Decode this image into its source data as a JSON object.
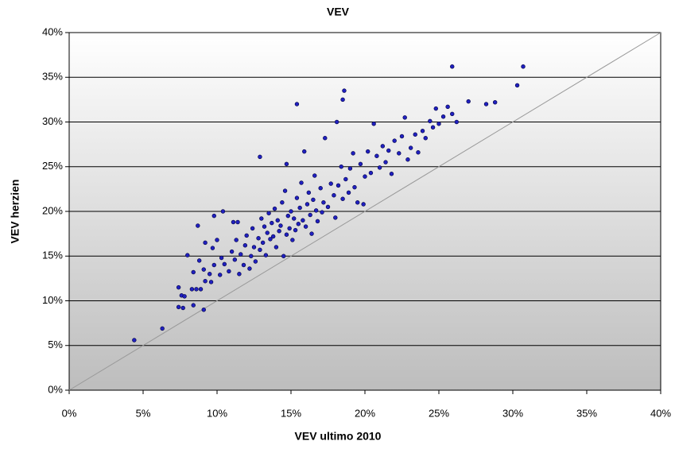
{
  "chart_data": {
    "type": "scatter",
    "title": "VEV",
    "x_label": "VEV ultimo 2010",
    "y_label": "VEV herzien",
    "xlim": [
      0,
      40
    ],
    "ylim": [
      0,
      40
    ],
    "xticks": [
      {
        "value": 0,
        "label": "0%"
      },
      {
        "value": 5,
        "label": "5%"
      },
      {
        "value": 10,
        "label": "10%"
      },
      {
        "value": 15,
        "label": "15%"
      },
      {
        "value": 20,
        "label": "20%"
      },
      {
        "value": 25,
        "label": "25%"
      },
      {
        "value": 30,
        "label": "30%"
      },
      {
        "value": 35,
        "label": "35%"
      },
      {
        "value": 40,
        "label": "40%"
      }
    ],
    "yticks": [
      {
        "value": 0,
        "label": "0%"
      },
      {
        "value": 5,
        "label": "5%"
      },
      {
        "value": 10,
        "label": "10%"
      },
      {
        "value": 15,
        "label": "15%"
      },
      {
        "value": 20,
        "label": "20%"
      },
      {
        "value": 25,
        "label": "25%"
      },
      {
        "value": 30,
        "label": "30%"
      },
      {
        "value": 35,
        "label": "35%"
      },
      {
        "value": 40,
        "label": "40%"
      }
    ],
    "grid": true,
    "identity_line": true,
    "color": "#2020c0",
    "series": [
      {
        "color": "#2020c0",
        "x": [
          4.4,
          6.3,
          7.4,
          7.4,
          7.7,
          7.6,
          7.8,
          8.0,
          8.7,
          8.3,
          8.4,
          8.6,
          9.1,
          8.9,
          8.4,
          8.8,
          9.1,
          9.2,
          9.2,
          9.6,
          9.7,
          9.8,
          10.4,
          10.3,
          11.1,
          9.8,
          10.2,
          9.5,
          10.0,
          11.4,
          10.5,
          10.8,
          11.0,
          11.2,
          11.3,
          11.5,
          11.6,
          11.8,
          11.9,
          12.0,
          12.2,
          12.3,
          12.4,
          12.5,
          12.6,
          12.8,
          12.9,
          13.0,
          13.1,
          13.2,
          13.3,
          13.4,
          13.5,
          13.6,
          13.7,
          13.8,
          13.9,
          14.0,
          14.1,
          14.2,
          14.3,
          14.4,
          14.5,
          14.6,
          14.7,
          14.8,
          14.9,
          15.0,
          15.1,
          15.2,
          15.3,
          15.4,
          15.5,
          15.6,
          15.7,
          15.8,
          15.9,
          16.0,
          16.1,
          16.2,
          16.3,
          16.4,
          16.5,
          16.6,
          16.7,
          16.8,
          17.0,
          17.1,
          17.2,
          17.3,
          17.5,
          17.7,
          17.9,
          18.0,
          18.1,
          18.2,
          18.4,
          18.5,
          18.6,
          18.7,
          18.9,
          19.0,
          19.2,
          19.3,
          19.5,
          19.7,
          19.9,
          20.0,
          20.2,
          20.4,
          20.6,
          20.8,
          21.0,
          21.2,
          21.4,
          21.6,
          21.8,
          22.0,
          22.3,
          22.5,
          22.7,
          22.9,
          23.1,
          23.4,
          23.6,
          23.9,
          24.1,
          24.4,
          24.6,
          24.8,
          25.0,
          25.3,
          25.6,
          25.9,
          26.2,
          27.0,
          28.2,
          28.8,
          30.3,
          30.7,
          25.9,
          15.4,
          18.5,
          12.9,
          14.7
        ],
        "values": [
          5.6,
          6.9,
          11.5,
          9.3,
          9.2,
          10.6,
          10.5,
          15.1,
          18.4,
          11.3,
          9.5,
          11.3,
          9.0,
          11.3,
          13.2,
          14.5,
          13.5,
          16.5,
          12.2,
          12.1,
          15.9,
          19.5,
          20.0,
          14.8,
          18.8,
          14.0,
          12.9,
          13.0,
          16.8,
          18.8,
          14.1,
          13.3,
          15.5,
          14.6,
          16.8,
          13.0,
          15.2,
          14.0,
          16.2,
          17.3,
          13.6,
          15.0,
          18.1,
          16.0,
          14.4,
          17.0,
          15.7,
          19.2,
          16.5,
          18.3,
          15.1,
          17.6,
          19.8,
          16.9,
          18.7,
          17.2,
          20.3,
          16.0,
          19.0,
          17.8,
          18.4,
          21.0,
          15.0,
          22.3,
          17.4,
          19.5,
          18.1,
          20.0,
          16.8,
          19.2,
          17.9,
          21.5,
          18.6,
          20.4,
          23.2,
          19.0,
          26.7,
          18.3,
          20.8,
          22.1,
          19.6,
          17.5,
          21.3,
          24.0,
          20.1,
          18.9,
          22.6,
          19.9,
          21.0,
          28.2,
          20.5,
          23.1,
          21.8,
          19.3,
          30.0,
          22.9,
          25.0,
          21.4,
          33.5,
          23.6,
          22.1,
          24.8,
          26.5,
          22.7,
          21.0,
          25.3,
          20.8,
          23.9,
          26.7,
          24.3,
          29.8,
          26.2,
          24.9,
          27.3,
          25.5,
          26.8,
          24.2,
          27.9,
          26.5,
          28.4,
          30.5,
          25.8,
          27.1,
          28.6,
          26.6,
          29.0,
          28.2,
          30.1,
          29.4,
          31.5,
          29.8,
          30.6,
          31.7,
          30.9,
          30.0,
          32.3,
          32.0,
          32.2,
          34.1,
          36.2,
          36.2,
          32.0,
          32.5,
          26.1,
          25.3
        ]
      }
    ]
  }
}
